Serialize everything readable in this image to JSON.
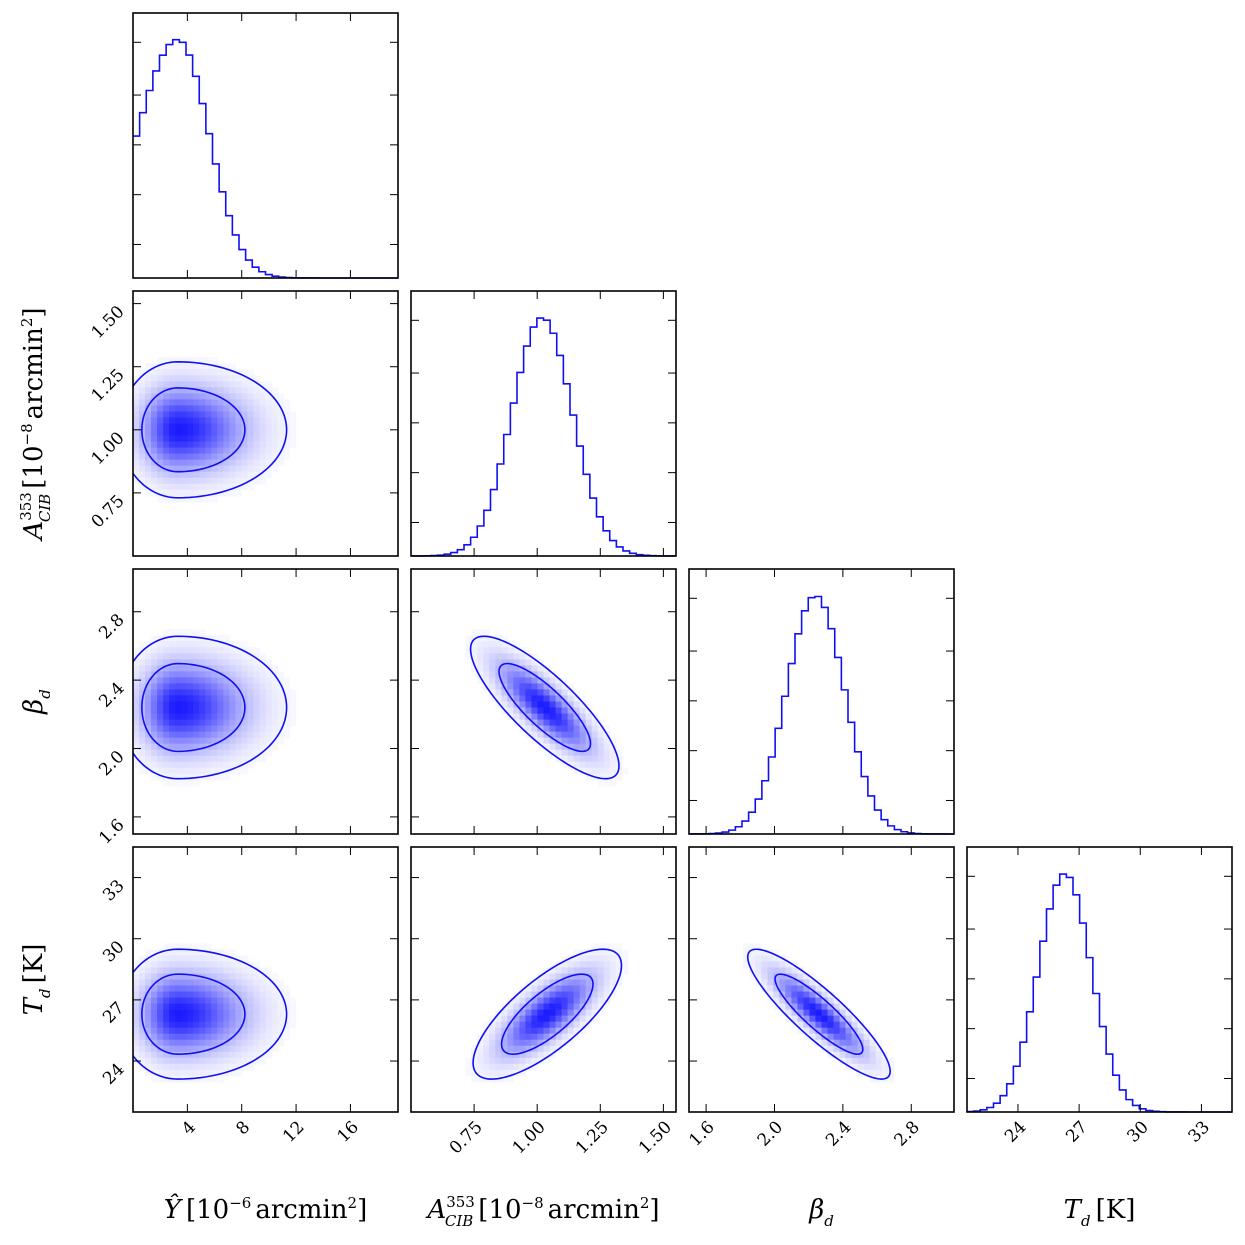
{
  "chart_data": {
    "type": "corner",
    "colors": {
      "line": "#1010f0",
      "fill": "#1a1aff"
    },
    "parameters": [
      {
        "key": "Y",
        "range": [
          0,
          19.5
        ],
        "ticks": [
          4,
          8,
          12,
          16
        ],
        "tick_labels": [
          "4",
          "8",
          "12",
          "16"
        ],
        "hist": {
          "peak": 3.3,
          "sigma_left": 3.0,
          "sigma_right": 2.3,
          "bins": 40
        },
        "label": {
          "main": "Ŷ",
          "rest": "[10",
          "sup1": "−6",
          "unit": "arcmin",
          "sup2": "2",
          "close": "]"
        }
      },
      {
        "key": "A",
        "range": [
          0.5,
          1.55
        ],
        "ticks": [
          0.75,
          1.0,
          1.25,
          1.5
        ],
        "tick_labels": [
          "0.75",
          "1.00",
          "1.25",
          "1.50"
        ],
        "hist": {
          "peak": 1.02,
          "sigma_left": 0.12,
          "sigma_right": 0.12,
          "bins": 40
        },
        "label": {
          "main": "A",
          "sup0": "353",
          "sub0": "CIB",
          "rest": "[10",
          "sup1": "−8",
          "unit": "arcmin",
          "sup2": "2",
          "close": "]"
        }
      },
      {
        "key": "B",
        "range": [
          1.5,
          3.05
        ],
        "ticks": [
          1.6,
          2.0,
          2.4,
          2.8
        ],
        "tick_labels": [
          "1.6",
          "2.0",
          "2.4",
          "2.8"
        ],
        "hist": {
          "peak": 2.24,
          "sigma_left": 0.17,
          "sigma_right": 0.17,
          "bins": 40
        },
        "label": {
          "main": "β",
          "sub0": "d"
        }
      },
      {
        "key": "T",
        "range": [
          21.5,
          34.5
        ],
        "ticks": [
          24,
          27,
          30,
          33
        ],
        "tick_labels": [
          "24",
          "27",
          "30",
          "33"
        ],
        "hist": {
          "peak": 26.3,
          "sigma_left": 1.3,
          "sigma_right": 1.3,
          "bins": 40
        },
        "label": {
          "main": "T",
          "sub0": "d",
          "rest": "[K]"
        }
      }
    ],
    "pairs": [
      {
        "row": 1,
        "col": 0,
        "mean": [
          3.3,
          1.0
        ],
        "sig": [
          2.7,
          0.11
        ],
        "rho": 0.0,
        "skew": 0.35
      },
      {
        "row": 2,
        "col": 0,
        "mean": [
          3.3,
          2.24
        ],
        "sig": [
          2.7,
          0.17
        ],
        "rho": 0.0,
        "skew": 0.35
      },
      {
        "row": 2,
        "col": 1,
        "mean": [
          1.03,
          2.24
        ],
        "sig": [
          0.12,
          0.17
        ],
        "rho": -0.82,
        "skew": 0
      },
      {
        "row": 3,
        "col": 0,
        "mean": [
          3.3,
          26.3
        ],
        "sig": [
          2.7,
          1.3
        ],
        "rho": 0.0,
        "skew": 0.35
      },
      {
        "row": 3,
        "col": 1,
        "mean": [
          1.04,
          26.3
        ],
        "sig": [
          0.12,
          1.3
        ],
        "rho": 0.75,
        "skew": 0
      },
      {
        "row": 3,
        "col": 2,
        "mean": [
          2.26,
          26.3
        ],
        "sig": [
          0.17,
          1.3
        ],
        "rho": -0.88,
        "skew": 0
      }
    ],
    "contour_levels": [
      "68%",
      "95%"
    ]
  }
}
